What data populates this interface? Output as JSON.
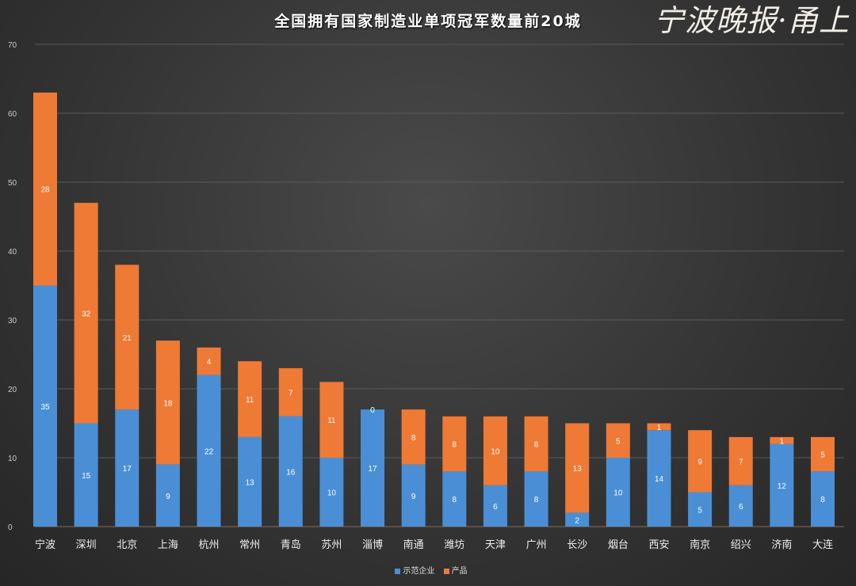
{
  "chart_data": {
    "type": "bar",
    "stacked": true,
    "title": "全国拥有国家制造业单项冠军数量前20城",
    "xlabel": "",
    "ylabel": "",
    "ylim": [
      0,
      70
    ],
    "yticks": [
      0,
      10,
      20,
      30,
      40,
      50,
      60,
      70
    ],
    "grid": true,
    "legend_position": "bottom",
    "categories": [
      "宁波",
      "深圳",
      "北京",
      "上海",
      "杭州",
      "常州",
      "青岛",
      "苏州",
      "淄博",
      "南通",
      "潍坊",
      "天津",
      "广州",
      "长沙",
      "烟台",
      "西安",
      "南京",
      "绍兴",
      "济南",
      "大连"
    ],
    "series": [
      {
        "name": "示范企业",
        "color": "#4a8fd6",
        "values": [
          35,
          15,
          17,
          9,
          22,
          13,
          16,
          10,
          17,
          9,
          8,
          6,
          8,
          2,
          10,
          14,
          5,
          6,
          12,
          8
        ]
      },
      {
        "name": "产品",
        "color": "#ee7a35",
        "values": [
          28,
          32,
          21,
          18,
          4,
          11,
          7,
          11,
          0,
          8,
          8,
          10,
          8,
          13,
          5,
          1,
          9,
          7,
          1,
          5
        ]
      }
    ]
  },
  "watermark": "宁波晚报·甬上"
}
